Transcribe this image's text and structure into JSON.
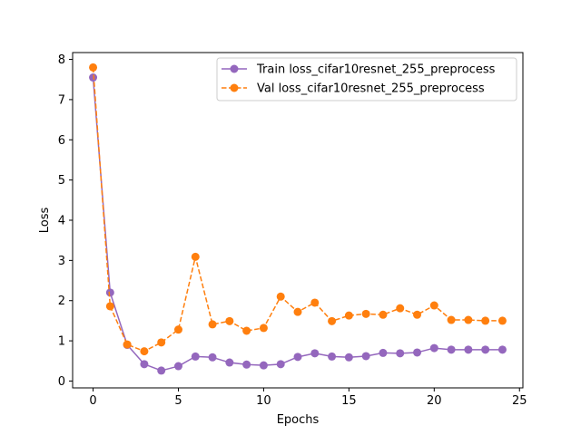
{
  "chart_data": {
    "type": "line",
    "title": "",
    "xlabel": "Epochs",
    "ylabel": "Loss",
    "xlim": [
      -1.2,
      25.2
    ],
    "ylim": [
      -0.17,
      8.17
    ],
    "x_ticks": [
      0,
      5,
      10,
      15,
      20,
      25
    ],
    "y_ticks": [
      0,
      1,
      2,
      3,
      4,
      5,
      6,
      7,
      8
    ],
    "legend_position": "top-right",
    "grid": false,
    "x": [
      0,
      1,
      2,
      3,
      4,
      5,
      6,
      7,
      8,
      9,
      10,
      11,
      12,
      13,
      14,
      15,
      16,
      17,
      18,
      19,
      20,
      21,
      22,
      23,
      24
    ],
    "series": [
      {
        "name": "Train loss_cifar10resnet_255_preprocess",
        "color": "#9467bd",
        "line_style": "solid",
        "marker": "circle",
        "values": [
          7.55,
          2.2,
          0.9,
          0.42,
          0.26,
          0.37,
          0.61,
          0.59,
          0.46,
          0.41,
          0.39,
          0.42,
          0.6,
          0.69,
          0.61,
          0.59,
          0.62,
          0.7,
          0.69,
          0.71,
          0.82,
          0.78,
          0.78,
          0.78,
          0.78
        ]
      },
      {
        "name": "Val loss_cifar10resnet_255_preprocess",
        "color": "#ff7f0e",
        "line_style": "dashed",
        "marker": "circle",
        "values": [
          7.8,
          1.86,
          0.91,
          0.74,
          0.96,
          1.28,
          3.09,
          1.41,
          1.49,
          1.25,
          1.32,
          2.1,
          1.72,
          1.95,
          1.49,
          1.63,
          1.67,
          1.65,
          1.81,
          1.65,
          1.88,
          1.52,
          1.52,
          1.5,
          1.5
        ]
      }
    ]
  }
}
